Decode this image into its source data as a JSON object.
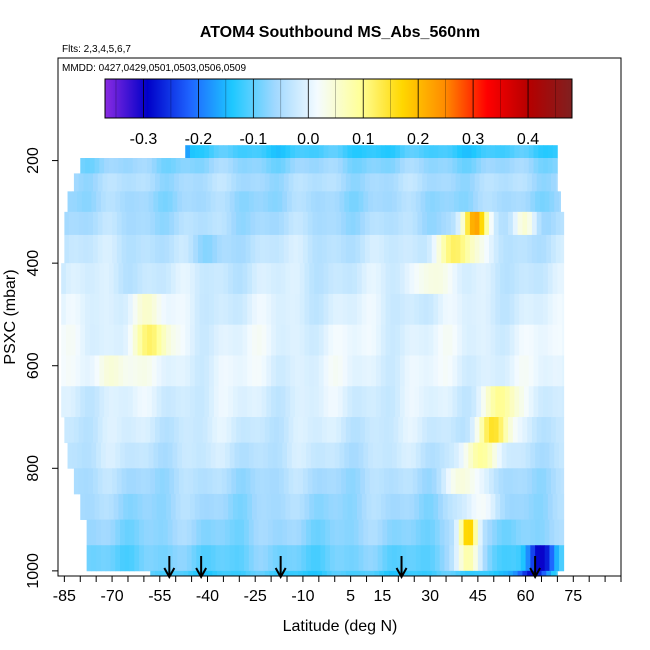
{
  "chart_data": {
    "type": "heatmap",
    "title": "ATOM4 Southbound MS_Abs_560nm",
    "flights_note": "Flts: 2,3,4,5,6,7",
    "dates_note": "MMDD: 0427,0429,0501,0503,0506,0509",
    "xlabel": "Latitude (deg N)",
    "ylabel": "PSXC (mbar)",
    "xlim": [
      -87,
      90
    ],
    "ylim": [
      1010,
      0
    ],
    "x_ticks": [
      -85,
      -70,
      -55,
      -40,
      -25,
      -10,
      5,
      15,
      30,
      45,
      60,
      75
    ],
    "y_ticks": [
      200,
      400,
      600,
      800,
      1000
    ],
    "colorbar": {
      "range": [
        -0.37,
        0.48
      ],
      "ticks": [
        "-0.3",
        "-0.2",
        "-0.1",
        "0.0",
        "0.1",
        "0.2",
        "0.3",
        "0.4"
      ],
      "tick_values": [
        -0.3,
        -0.2,
        -0.1,
        0.0,
        0.1,
        0.2,
        0.3,
        0.4
      ],
      "colors": [
        "#8a2be2",
        "#0000c8",
        "#1e64ff",
        "#1ec8ff",
        "#a0d8ff",
        "#f4fbff",
        "#ffff99",
        "#ffd700",
        "#ff8c00",
        "#ff0000",
        "#b40000",
        "#802020"
      ]
    },
    "data_layers": [
      {
        "p": [
          170,
          195
        ],
        "lat": [
          -47,
          70
        ],
        "base": -0.12,
        "hot": [
          {
            "lat": -50,
            "v": -0.32,
            "w": 3
          }
        ]
      },
      {
        "p": [
          195,
          225
        ],
        "lat": [
          -80,
          70
        ],
        "base": -0.07
      },
      {
        "p": [
          225,
          260
        ],
        "lat": [
          -82,
          70
        ],
        "base": -0.05
      },
      {
        "p": [
          260,
          300
        ],
        "lat": [
          -84,
          71
        ],
        "base": -0.06
      },
      {
        "p": [
          300,
          345
        ],
        "lat": [
          -85,
          72
        ],
        "base": -0.05,
        "hot": [
          {
            "lat": 44,
            "v": 0.22,
            "w": 4
          },
          {
            "lat": 60,
            "v": 0.05,
            "w": 4
          }
        ]
      },
      {
        "p": [
          345,
          400
        ],
        "lat": [
          -85,
          72
        ],
        "base": -0.03,
        "hot": [
          {
            "lat": 38,
            "v": 0.12,
            "w": 7
          },
          {
            "lat": -40,
            "v": -0.08,
            "w": 6
          }
        ]
      },
      {
        "p": [
          400,
          460
        ],
        "lat": [
          -86,
          72
        ],
        "base": -0.02,
        "hot": [
          {
            "lat": 30,
            "v": 0.06,
            "w": 6
          }
        ]
      },
      {
        "p": [
          460,
          520
        ],
        "lat": [
          -86,
          72
        ],
        "base": -0.01,
        "hot": [
          {
            "lat": -60,
            "v": 0.05,
            "w": 6
          }
        ]
      },
      {
        "p": [
          520,
          580
        ],
        "lat": [
          -86,
          72
        ],
        "base": 0.0,
        "hot": [
          {
            "lat": -58,
            "v": 0.1,
            "w": 6
          }
        ]
      },
      {
        "p": [
          580,
          640
        ],
        "lat": [
          -86,
          72
        ],
        "base": 0.0,
        "hot": [
          {
            "lat": -70,
            "v": 0.05,
            "w": 8
          }
        ]
      },
      {
        "p": [
          640,
          700
        ],
        "lat": [
          -86,
          72
        ],
        "base": -0.01,
        "hot": [
          {
            "lat": 52,
            "v": 0.1,
            "w": 5
          }
        ]
      },
      {
        "p": [
          700,
          750
        ],
        "lat": [
          -85,
          72
        ],
        "base": -0.02,
        "hot": [
          {
            "lat": 50,
            "v": 0.14,
            "w": 5
          }
        ]
      },
      {
        "p": [
          750,
          800
        ],
        "lat": [
          -84,
          72
        ],
        "base": -0.03,
        "hot": [
          {
            "lat": 45,
            "v": 0.08,
            "w": 6
          }
        ]
      },
      {
        "p": [
          800,
          850
        ],
        "lat": [
          -82,
          72
        ],
        "base": -0.05,
        "hot": [
          {
            "lat": 40,
            "v": 0.05,
            "w": 6
          }
        ]
      },
      {
        "p": [
          850,
          900
        ],
        "lat": [
          -80,
          72
        ],
        "base": -0.06,
        "hot": [
          {
            "lat": 45,
            "v": 0.0,
            "w": 8
          }
        ]
      },
      {
        "p": [
          900,
          950
        ],
        "lat": [
          -78,
          72
        ],
        "base": -0.07,
        "hot": [
          {
            "lat": 42,
            "v": 0.18,
            "w": 3
          }
        ]
      },
      {
        "p": [
          950,
          1000
        ],
        "lat": [
          -78,
          72
        ],
        "base": -0.09,
        "hot": [
          {
            "lat": 65,
            "v": -0.3,
            "w": 5
          },
          {
            "lat": 42,
            "v": 0.08,
            "w": 4
          }
        ]
      },
      {
        "p": [
          1000,
          1010
        ],
        "lat": [
          -58,
          70
        ],
        "base": -0.12,
        "hot": [
          {
            "lat": 62,
            "v": -0.3,
            "w": 5
          }
        ]
      }
    ],
    "arrows_lat": [
      -52,
      -42,
      -17,
      21,
      63
    ]
  }
}
